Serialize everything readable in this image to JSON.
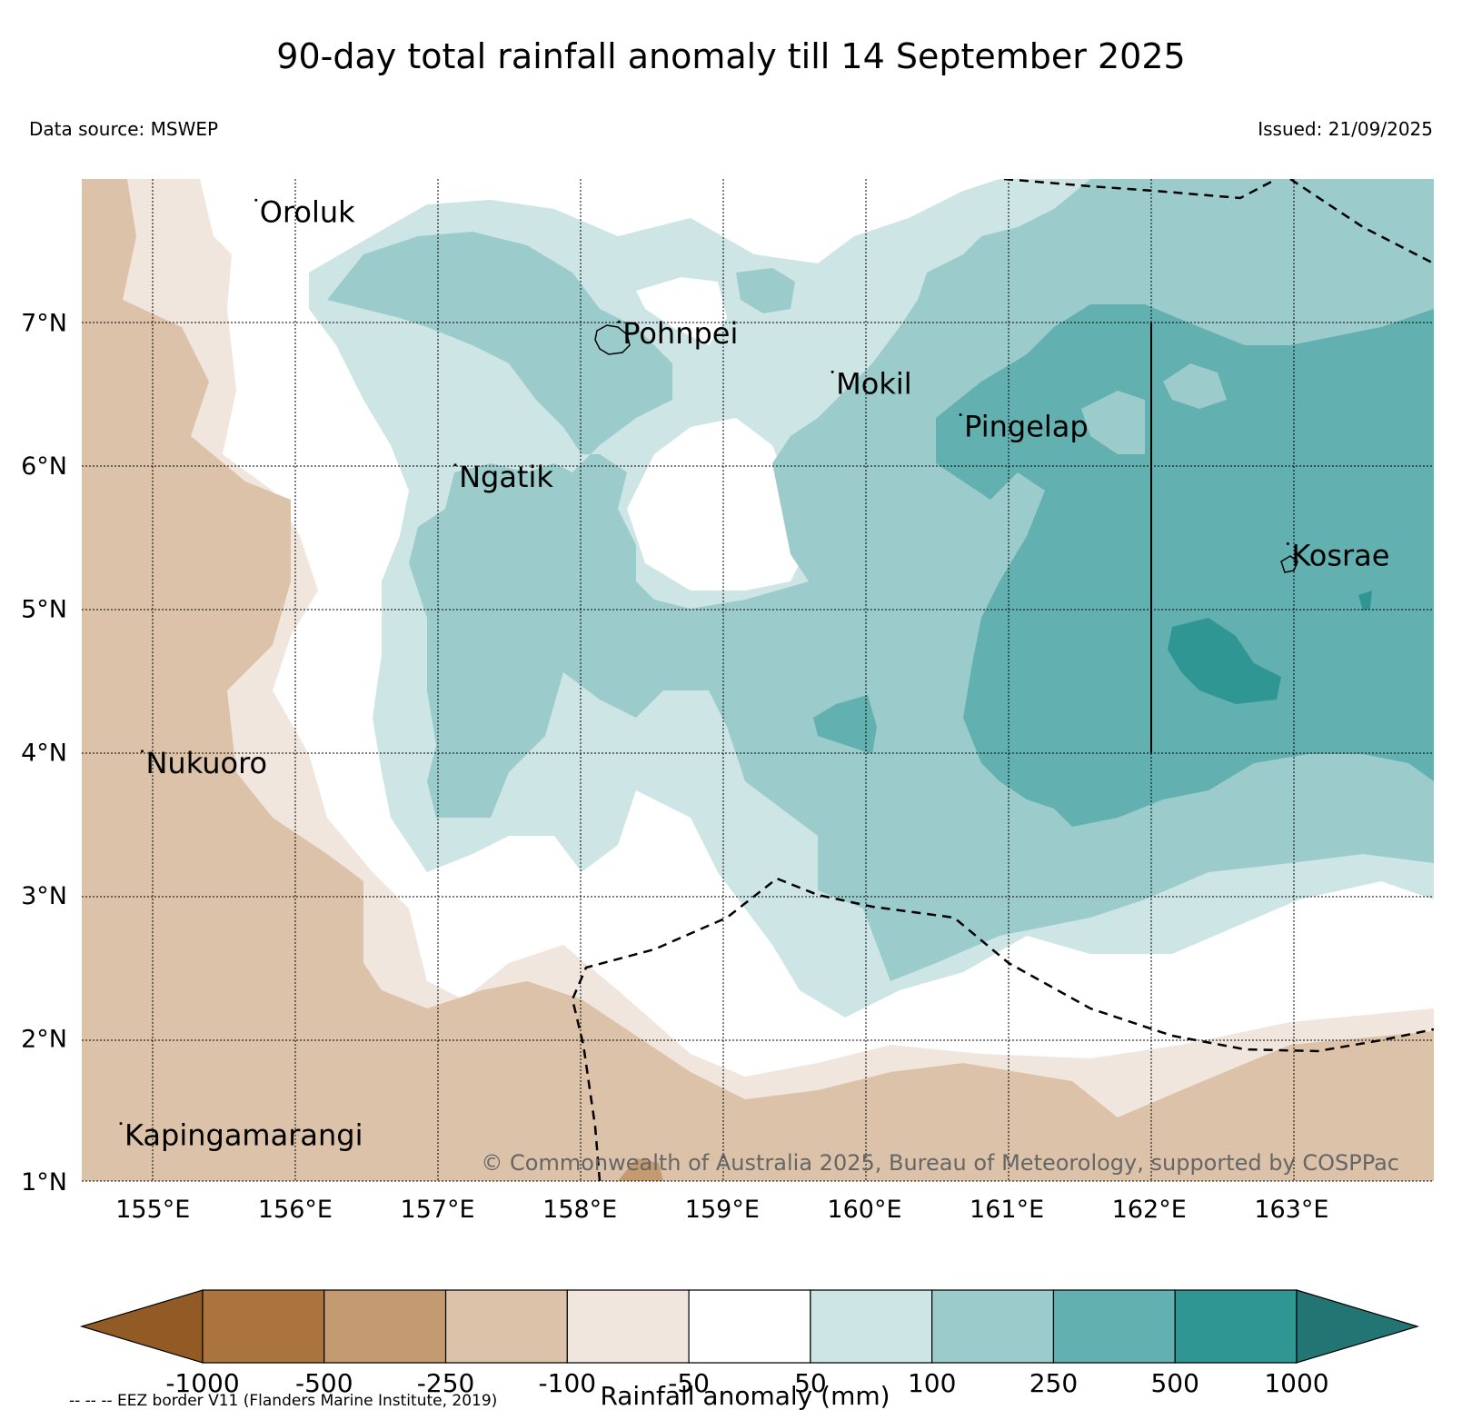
{
  "title": "90-day total rainfall anomaly till 14 September 2025",
  "data_source": "Data source: MSWEP",
  "issued": "Issued: 21/09/2025",
  "copyright": "© Commonwealth of Australia 2025, Bureau of Meteorology, supported by COSPPac",
  "footnote": "-- -- -- EEZ border V11 (Flanders Marine Institute, 2019)",
  "map": {
    "lon_range": [
      154.5,
      164.0
    ],
    "lat_range": [
      1.0,
      8.0
    ],
    "lon_ticks": [
      "155°E",
      "156°E",
      "157°E",
      "158°E",
      "159°E",
      "160°E",
      "161°E",
      "162°E",
      "163°E"
    ],
    "lat_ticks": [
      "7°N",
      "6°N",
      "5°N",
      "4°N",
      "3°N",
      "2°N",
      "1°N"
    ],
    "grid": true,
    "places": [
      {
        "name": "Oroluk",
        "lon": 155.75,
        "lat": 7.7
      },
      {
        "name": "Pohnpei",
        "lon": 158.3,
        "lat": 6.85
      },
      {
        "name": "Mokil",
        "lon": 159.8,
        "lat": 6.5
      },
      {
        "name": "Pingelap",
        "lon": 160.7,
        "lat": 6.2
      },
      {
        "name": "Ngatik",
        "lon": 157.15,
        "lat": 5.85
      },
      {
        "name": "Kosrae",
        "lon": 163.0,
        "lat": 5.3
      },
      {
        "name": "Nukuoro",
        "lon": 154.95,
        "lat": 3.85
      },
      {
        "name": "Kapingamarangi",
        "lon": 154.8,
        "lat": 1.25
      }
    ]
  },
  "legend": {
    "label": "Rainfall anomaly (mm)",
    "ticks": [
      "-1000",
      "-500",
      "-250",
      "-100",
      "-50",
      "50",
      "100",
      "250",
      "500",
      "1000"
    ],
    "colors": [
      "#925a24",
      "#ab743e",
      "#c49a70",
      "#dbc2a9",
      "#f1e6dd",
      "#ffffff",
      "#cde5e4",
      "#9bcbcb",
      "#62b1b0",
      "#2f9694",
      "#237573"
    ]
  }
}
